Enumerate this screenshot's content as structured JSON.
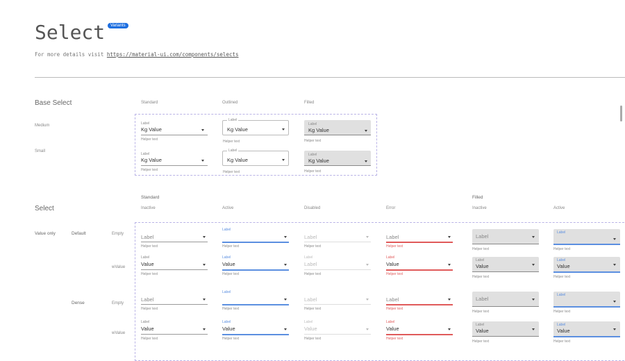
{
  "header": {
    "title": "Select",
    "badge": "Variants",
    "subtitle_prefix": "For more details visit ",
    "link": "https://material-ui.com/components/selects"
  },
  "colors": {
    "accent": "#5b8fe0",
    "error": "#e05a5a",
    "filled_bg": "#e0e0e0",
    "badge": "#1e6fe0"
  },
  "base": {
    "title": "Base Select",
    "columns": [
      "Standard",
      "Outlined",
      "Filled"
    ],
    "rows": [
      "Medium",
      "Small"
    ],
    "field": {
      "label": "Label",
      "prefix": "Kg",
      "value": "Value",
      "helper": "Helper text"
    }
  },
  "select": {
    "title": "Select",
    "group_standard": "Standard",
    "group_filled": "Filled",
    "columns": [
      "Inactive",
      "Active",
      "Disabled",
      "Error",
      "Inactive",
      "Active"
    ],
    "variant": "Value only",
    "sizes": [
      "Default",
      "Dense"
    ],
    "states": [
      "Empty",
      "wValue"
    ],
    "rows": [
      [
        {
          "label": "Label",
          "value": "",
          "helper": "Helper text"
        },
        {
          "label": "Label",
          "value": "",
          "helper": "Helper text"
        },
        {
          "label": "Label",
          "value": "",
          "helper": "Helper text"
        },
        {
          "label": "Label",
          "value": "",
          "helper": "Helper text"
        },
        {
          "label": "Label",
          "value": "",
          "helper": "Helper text"
        },
        {
          "label": "Label",
          "value": "",
          "helper": "Helper text"
        }
      ],
      [
        {
          "label": "Label",
          "value": "Value",
          "helper": "Helper text"
        },
        {
          "label": "Label",
          "value": "Value",
          "helper": "Helper text"
        },
        {
          "label": "Label",
          "value": "Label",
          "helper": "Helper text"
        },
        {
          "label": "Label",
          "value": "Value",
          "helper": "Helper text"
        },
        {
          "label": "Label",
          "value": "Value",
          "helper": "Helper text"
        },
        {
          "label": "Label",
          "value": "Value",
          "helper": "Helper text"
        }
      ],
      [
        {
          "label": "Label",
          "value": "",
          "helper": "Helper text"
        },
        {
          "label": "Label",
          "value": "",
          "helper": "Helper text"
        },
        {
          "label": "Label",
          "value": "",
          "helper": "Helper text"
        },
        {
          "label": "Label",
          "value": "",
          "helper": "Helper text"
        },
        {
          "label": "Label",
          "value": "",
          "helper": "Helper text"
        },
        {
          "label": "Label",
          "value": "",
          "helper": "Helper text"
        }
      ],
      [
        {
          "label": "Label",
          "value": "Value",
          "helper": "Helper text"
        },
        {
          "label": "Label",
          "value": "Value",
          "helper": "Helper text"
        },
        {
          "label": "Label",
          "value": "Value",
          "helper": "Helper text"
        },
        {
          "label": "Label",
          "value": "Value",
          "helper": "Helper text"
        },
        {
          "label": "Label",
          "value": "Value",
          "helper": "Helper text"
        },
        {
          "label": "Label",
          "value": "Value",
          "helper": "Helper text"
        }
      ]
    ]
  }
}
